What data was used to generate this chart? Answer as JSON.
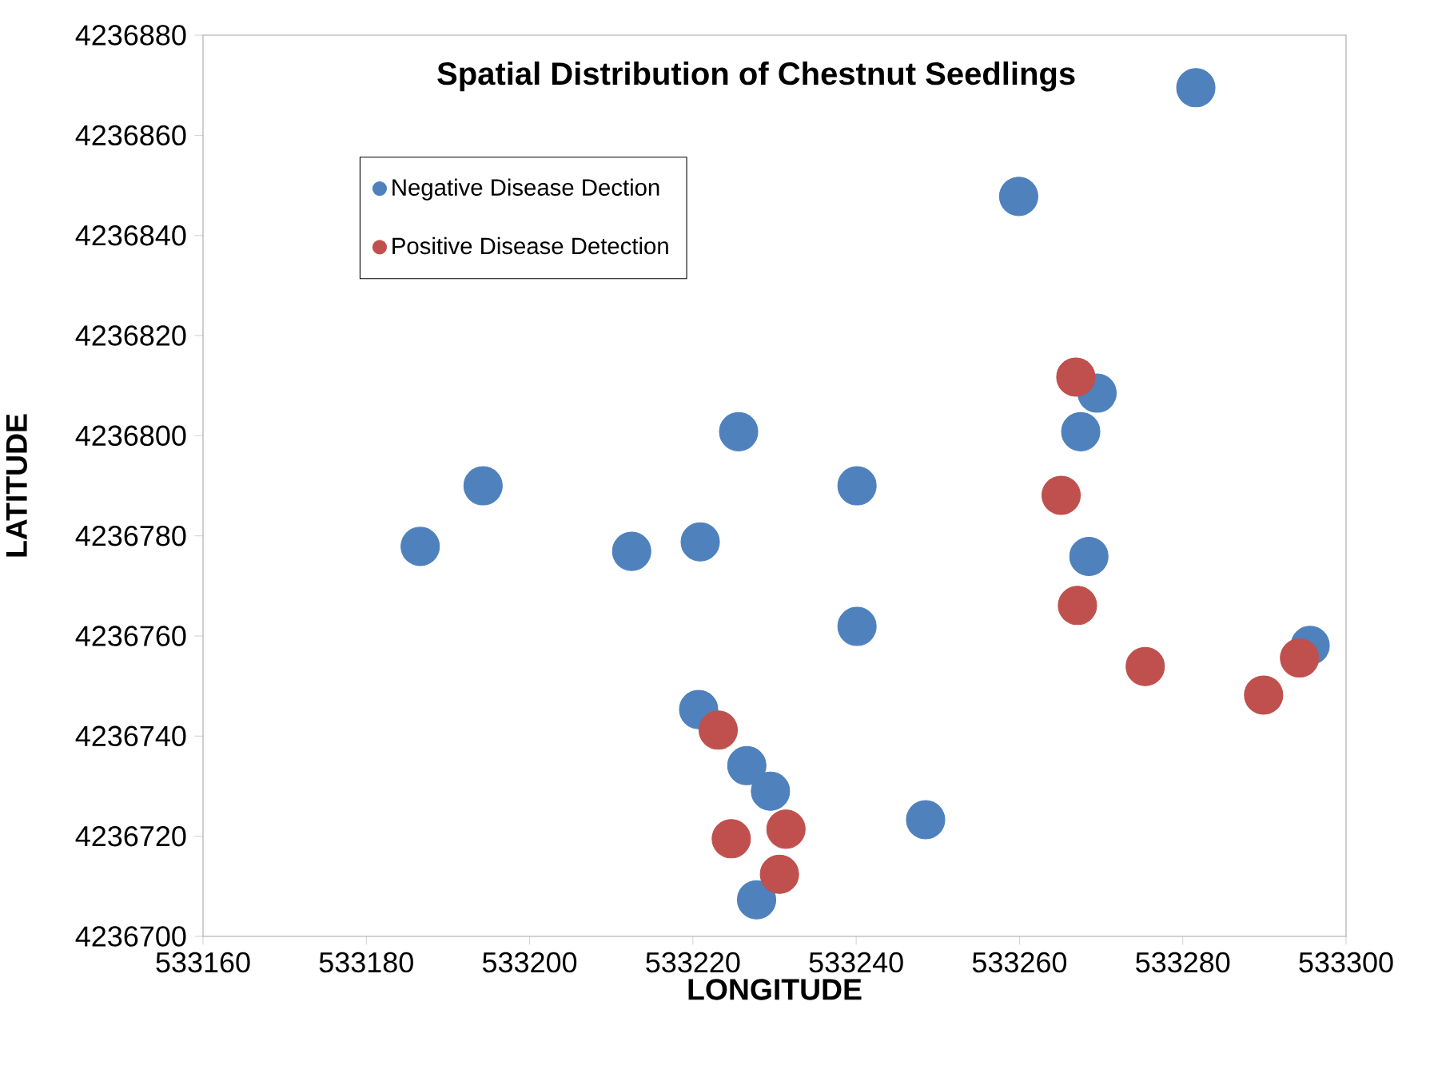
{
  "chart_data": {
    "type": "scatter",
    "title": "Spatial Distribution of Chestnut Seedlings",
    "xlabel": "LONGITUDE",
    "ylabel": "LATITUDE",
    "xlim": [
      533160,
      533300
    ],
    "xticks": [
      533160,
      533180,
      533200,
      533220,
      533240,
      533260,
      533280,
      533300
    ],
    "ylim": [
      4236700,
      4236880
    ],
    "yticks": [
      4236700,
      4236720,
      4236740,
      4236760,
      4236780,
      4236800,
      4236820,
      4236840,
      4236860,
      4236880
    ],
    "legend": "top left",
    "marker": "circle",
    "grid": false,
    "series": [
      {
        "name": "Negative Disease Dection",
        "color": "#4f81bd",
        "x": [
          533186.6,
          533194.3,
          533212.5,
          533220.9,
          533225.6,
          533240.1,
          533240.1,
          533220.7,
          533226.6,
          533229.5,
          533227.8,
          533248.5,
          533259.9,
          533269.5,
          533267.5,
          533268.5,
          533295.6,
          533281.6
        ],
        "values": [
          4236777.9,
          4236790,
          4236776.9,
          4236778.8,
          4236800.8,
          4236790,
          4236761.9,
          4236745.3,
          4236734.1,
          4236729,
          4236707.3,
          4236723.3,
          4236847.8,
          4236808.5,
          4236800.8,
          4236775.9,
          4236758.1,
          4236869.5
        ]
      },
      {
        "name": "Positive Disease Detection",
        "color": "#c0504d",
        "x": [
          533266.9,
          533265.1,
          533267.1,
          533275.4,
          533289.9,
          533294.3,
          533223.1,
          533224.7,
          533231.4,
          533230.6
        ],
        "values": [
          4236811.7,
          4236788.1,
          4236766.1,
          4236753.9,
          4236748.2,
          4236755.6,
          4236741.2,
          4236719.5,
          4236721.4,
          4236712.4
        ]
      }
    ]
  }
}
